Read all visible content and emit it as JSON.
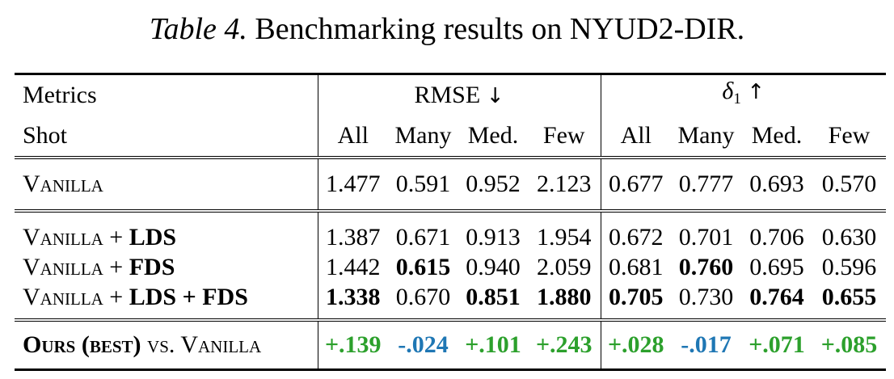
{
  "caption": {
    "label": "Table 4.",
    "text": "Benchmarking results on NYUD2-DIR."
  },
  "header": {
    "metrics_label": "Metrics",
    "group1": "RMSE",
    "group1_arrow": "↓",
    "group2_symbol": "δ",
    "group2_sub": "1",
    "group2_arrow": "↑",
    "shot_label": "Shot",
    "cols": [
      "All",
      "Many",
      "Med.",
      "Few",
      "All",
      "Many",
      "Med.",
      "Few"
    ]
  },
  "rows": [
    {
      "method": "Vanilla",
      "values": [
        "1.477",
        "0.591",
        "0.952",
        "2.123",
        "0.677",
        "0.777",
        "0.693",
        "0.570"
      ]
    },
    {
      "method_prefix": "Vanilla + ",
      "method_bold": "LDS",
      "values": [
        "1.387",
        "0.671",
        "0.913",
        "1.954",
        "0.672",
        "0.701",
        "0.706",
        "0.630"
      ]
    },
    {
      "method_prefix": "Vanilla + ",
      "method_bold": "FDS",
      "values": [
        "1.442",
        "0.615",
        "0.940",
        "2.059",
        "0.681",
        "0.760",
        "0.695",
        "0.596"
      ]
    },
    {
      "method_prefix": "Vanilla + ",
      "method_bold": "LDS",
      "method_mid": " + ",
      "method_bold2": "FDS",
      "values": [
        "1.338",
        "0.670",
        "0.851",
        "1.880",
        "0.705",
        "0.730",
        "0.764",
        "0.655"
      ]
    }
  ],
  "summary": {
    "label_bold": "Ours (best)",
    "label_rest": " vs. Vanilla",
    "values": [
      "+.139",
      "-.024",
      "+.101",
      "+.243",
      "+.028",
      "-.017",
      "+.071",
      "+.085"
    ]
  },
  "colors": {
    "positive": "#2ca02c",
    "negative": "#1f77b4"
  }
}
